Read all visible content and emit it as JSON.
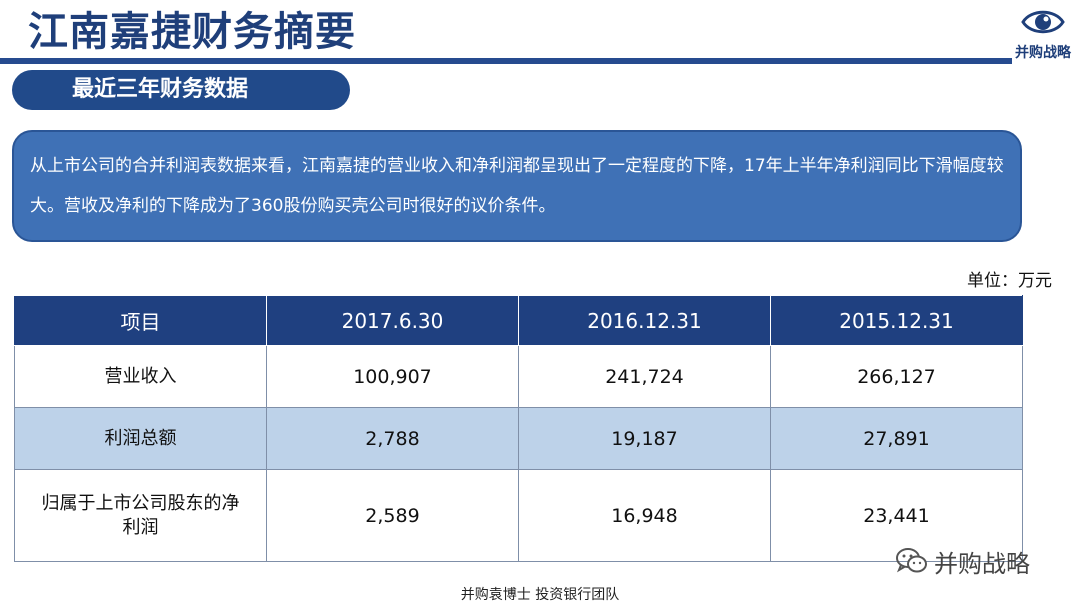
{
  "header": {
    "title": "江南嘉捷财务摘要",
    "logo_icon": "eye-icon",
    "logo_text": "并购战略"
  },
  "section": {
    "title": "最近三年财务数据"
  },
  "summary": {
    "text": "从上市公司的合并利润表数据来看，江南嘉捷的营业收入和净利润都呈现出了一定程度的下降，17年上半年净利润同比下滑幅度较大。营收及净利的下降成为了360股份购买壳公司时很好的议价条件。"
  },
  "unit": "单位：万元",
  "table": {
    "headers": [
      "项目",
      "2017.6.30",
      "2016.12.31",
      "2015.12.31"
    ],
    "rows": [
      {
        "label": "营业收入",
        "values": [
          "100,907",
          "241,724",
          "266,127"
        ]
      },
      {
        "label": "利润总额",
        "values": [
          "2,788",
          "19,187",
          "27,891"
        ]
      },
      {
        "label": "归属于上市公司股东的净利润",
        "values": [
          "2,589",
          "16,948",
          "23,441"
        ]
      }
    ]
  },
  "watermark": {
    "icon": "wechat-icon",
    "text": "并购战略"
  },
  "footer": {
    "text": "并购袁博士 投资银行团队"
  },
  "colors": {
    "brand_navy": "#1f4080",
    "summary_blue": "#3f71b6",
    "row_alt": "#bdd2e9"
  }
}
